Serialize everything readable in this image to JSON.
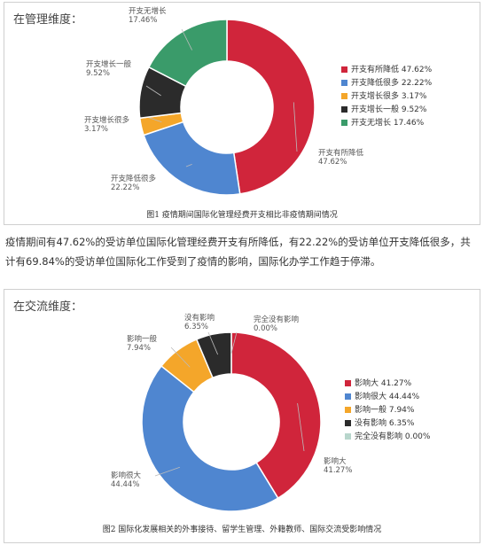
{
  "paragraph": "疫情期间有47.62%的受访单位国际化管理经费开支有所降低，有22.22%的受访单位开支降低很多，共计有69.84%的受访单位国际化工作受到了疫情的影响，国际化办学工作趋于停滞。",
  "chart_data": [
    {
      "type": "pie",
      "variant": "donut",
      "section_label": "在管理维度：",
      "title": "图1  疫情期间国际化管理经费开支相比非疫情期间情况",
      "legend_position": "right",
      "slices": [
        {
          "label": "开支有所降低",
          "value": 47.62,
          "value_text": "47.62%",
          "color": "#d0253b"
        },
        {
          "label": "开支降低很多",
          "value": 22.22,
          "value_text": "22.22%",
          "color": "#4f86d0"
        },
        {
          "label": "开支增长很多",
          "value": 3.17,
          "value_text": "3.17%",
          "color": "#f4a62a"
        },
        {
          "label": "开支增长一般",
          "value": 9.52,
          "value_text": "9.52%",
          "color": "#2b2b2b"
        },
        {
          "label": "开支无增长",
          "value": 17.46,
          "value_text": "17.46%",
          "color": "#3a9b6a"
        }
      ]
    },
    {
      "type": "pie",
      "variant": "donut",
      "section_label": "在交流维度：",
      "title": "图2  国际化发展相关的外事接待、留学生管理、外籍教师、国际交流受影响情况",
      "legend_position": "right",
      "slices": [
        {
          "label": "影响大",
          "value": 41.27,
          "value_text": "41.27%",
          "color": "#d0253b"
        },
        {
          "label": "影响很大",
          "value": 44.44,
          "value_text": "44.44%",
          "color": "#4f86d0"
        },
        {
          "label": "影响一般",
          "value": 7.94,
          "value_text": "7.94%",
          "color": "#f4a62a"
        },
        {
          "label": "没有影响",
          "value": 6.35,
          "value_text": "6.35%",
          "color": "#2b2b2b"
        },
        {
          "label": "完全没有影响",
          "value": 0.0,
          "value_text": "0.00%",
          "color": "#b8d6cc"
        }
      ]
    }
  ]
}
